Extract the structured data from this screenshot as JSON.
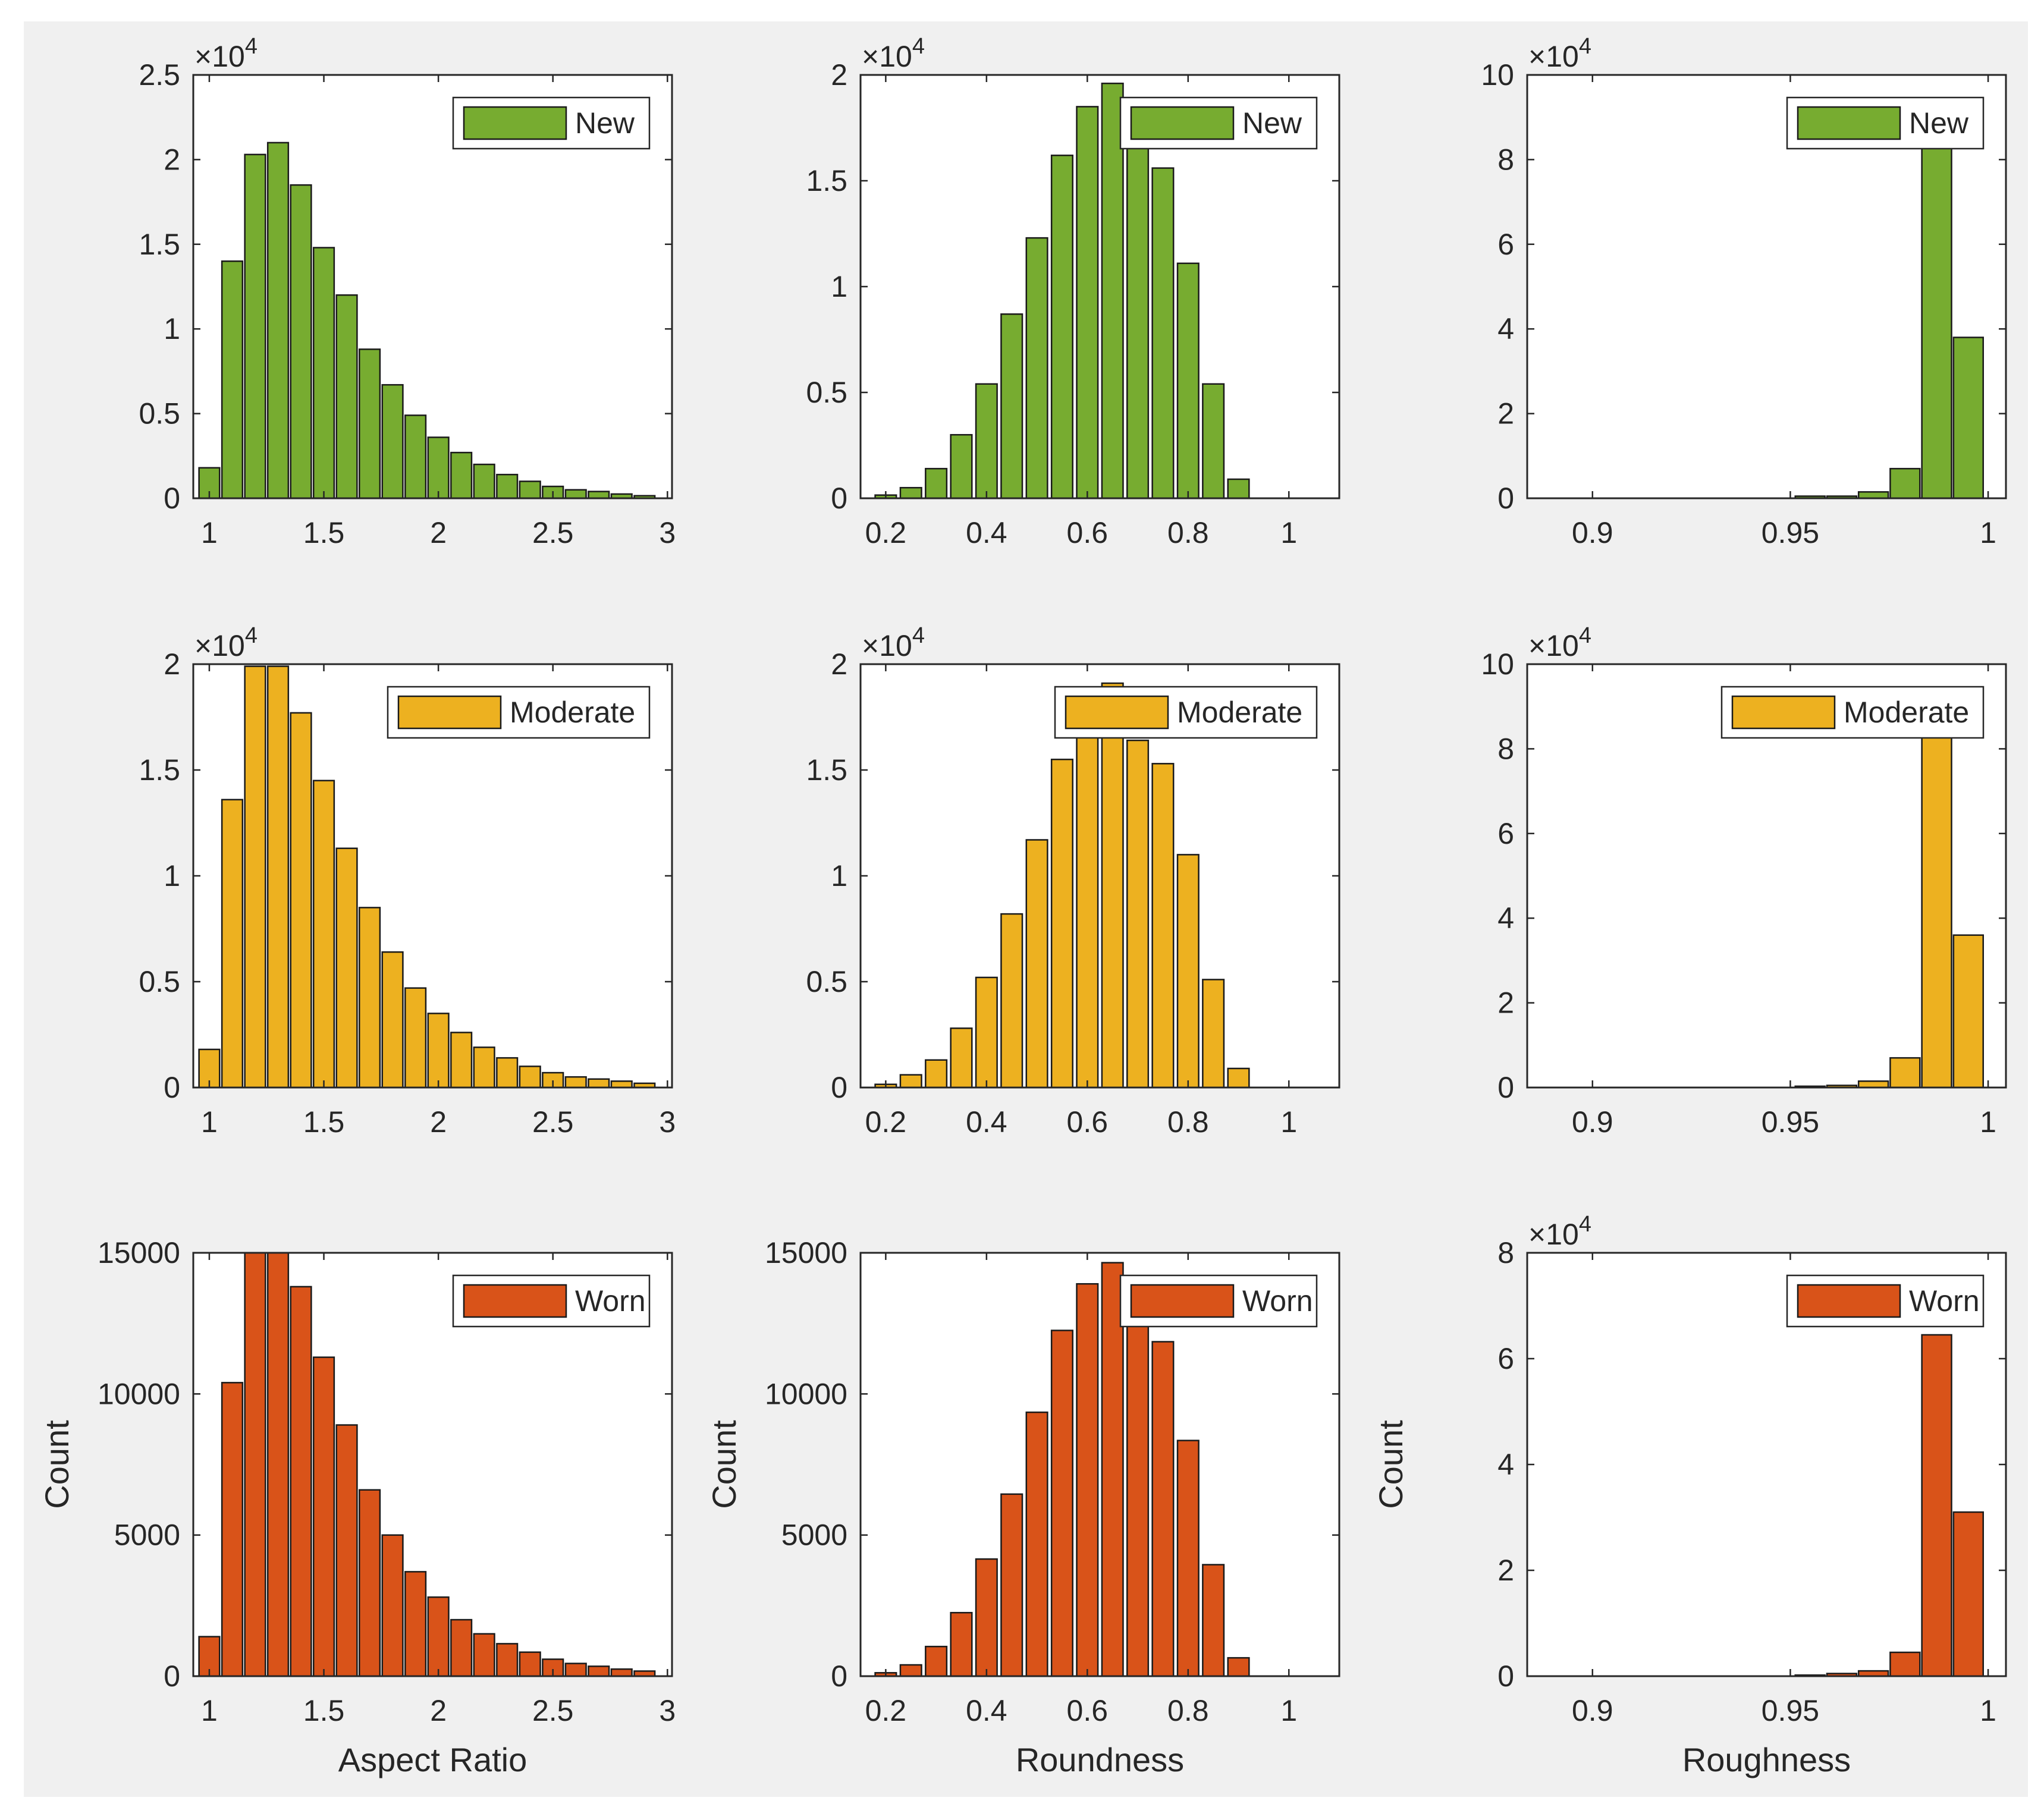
{
  "colors": {
    "new": "#77ac30",
    "moderate": "#edb120",
    "worn": "#d95319",
    "background": "#f0f0f0",
    "axes_bg": "#ffffff",
    "axis": "#262626",
    "legend_edge": "#262626"
  },
  "chart_data": [
    {
      "id": "aspect-new",
      "type": "bar",
      "row": 0,
      "col": 0,
      "legend": "New",
      "color_key": "new",
      "title": "",
      "xlabel": "",
      "ylabel": "",
      "exponent": "×10^4",
      "xlim": [
        0.93,
        3.02
      ],
      "ylim": [
        0,
        2.5
      ],
      "xticks": [
        1,
        1.5,
        2,
        2.5,
        3
      ],
      "xtick_labels": [
        "1",
        "1.5",
        "2",
        "2.5",
        "3"
      ],
      "yticks": [
        0,
        0.5,
        1,
        1.5,
        2,
        2.5
      ],
      "ytick_labels": [
        "0",
        "0.5",
        "1",
        "1.5",
        "2",
        "2.5"
      ],
      "bar_width": 0.09,
      "x": [
        1.0,
        1.1,
        1.2,
        1.3,
        1.4,
        1.5,
        1.6,
        1.7,
        1.8,
        1.9,
        2.0,
        2.1,
        2.2,
        2.3,
        2.4,
        2.5,
        2.6,
        2.7,
        2.8,
        2.9
      ],
      "values": [
        0.18,
        1.4,
        2.03,
        2.1,
        1.85,
        1.48,
        1.2,
        0.88,
        0.67,
        0.49,
        0.36,
        0.27,
        0.2,
        0.14,
        0.1,
        0.07,
        0.05,
        0.04,
        0.025,
        0.015
      ]
    },
    {
      "id": "roundness-new",
      "type": "bar",
      "row": 0,
      "col": 1,
      "legend": "New",
      "color_key": "new",
      "title": "",
      "xlabel": "",
      "ylabel": "",
      "exponent": "×10^4",
      "xlim": [
        0.15,
        1.1
      ],
      "ylim": [
        0,
        2
      ],
      "xticks": [
        0.2,
        0.4,
        0.6,
        0.8,
        1
      ],
      "xtick_labels": [
        "0.2",
        "0.4",
        "0.6",
        "0.8",
        "1"
      ],
      "yticks": [
        0,
        0.5,
        1,
        1.5,
        2
      ],
      "ytick_labels": [
        "0",
        "0.5",
        "1",
        "1.5",
        "2"
      ],
      "bar_width": 0.042,
      "x": [
        0.2,
        0.25,
        0.3,
        0.35,
        0.4,
        0.45,
        0.5,
        0.55,
        0.6,
        0.65,
        0.7,
        0.75,
        0.8,
        0.85,
        0.9
      ],
      "values": [
        0.015,
        0.05,
        0.14,
        0.3,
        0.54,
        0.87,
        1.23,
        1.62,
        1.85,
        1.96,
        1.66,
        1.56,
        1.11,
        0.54,
        0.09
      ]
    },
    {
      "id": "roughness-new",
      "type": "bar",
      "row": 0,
      "col": 2,
      "legend": "New",
      "color_key": "new",
      "title": "",
      "xlabel": "",
      "ylabel": "",
      "exponent": "×10^4",
      "xlim": [
        0.8835,
        1.0045
      ],
      "ylim": [
        0,
        10
      ],
      "xticks": [
        0.9,
        0.95,
        1
      ],
      "xtick_labels": [
        "0.9",
        "0.95",
        "1"
      ],
      "yticks": [
        0,
        2,
        4,
        6,
        8,
        10
      ],
      "ytick_labels": [
        "0",
        "2",
        "4",
        "6",
        "8",
        "10"
      ],
      "bar_width": 0.0075,
      "x": [
        0.955,
        0.963,
        0.971,
        0.979,
        0.987,
        0.995
      ],
      "values": [
        0.05,
        0.05,
        0.15,
        0.7,
        8.5,
        3.8
      ]
    },
    {
      "id": "aspect-moderate",
      "type": "bar",
      "row": 1,
      "col": 0,
      "legend": "Moderate",
      "color_key": "moderate",
      "title": "",
      "xlabel": "",
      "ylabel": "",
      "exponent": "×10^4",
      "xlim": [
        0.93,
        3.02
      ],
      "ylim": [
        0,
        2
      ],
      "xticks": [
        1,
        1.5,
        2,
        2.5,
        3
      ],
      "xtick_labels": [
        "1",
        "1.5",
        "2",
        "2.5",
        "3"
      ],
      "yticks": [
        0,
        0.5,
        1,
        1.5,
        2
      ],
      "ytick_labels": [
        "0",
        "0.5",
        "1",
        "1.5",
        "2"
      ],
      "bar_width": 0.09,
      "x": [
        1.0,
        1.1,
        1.2,
        1.3,
        1.4,
        1.5,
        1.6,
        1.7,
        1.8,
        1.9,
        2.0,
        2.1,
        2.2,
        2.3,
        2.4,
        2.5,
        2.6,
        2.7,
        2.8,
        2.9
      ],
      "values": [
        0.18,
        1.36,
        1.99,
        1.99,
        1.77,
        1.45,
        1.13,
        0.85,
        0.64,
        0.47,
        0.35,
        0.26,
        0.19,
        0.14,
        0.1,
        0.07,
        0.05,
        0.04,
        0.03,
        0.02
      ]
    },
    {
      "id": "roundness-moderate",
      "type": "bar",
      "row": 1,
      "col": 1,
      "legend": "Moderate",
      "color_key": "moderate",
      "title": "",
      "xlabel": "",
      "ylabel": "",
      "exponent": "×10^4",
      "xlim": [
        0.15,
        1.1
      ],
      "ylim": [
        0,
        2
      ],
      "xticks": [
        0.2,
        0.4,
        0.6,
        0.8,
        1
      ],
      "xtick_labels": [
        "0.2",
        "0.4",
        "0.6",
        "0.8",
        "1"
      ],
      "yticks": [
        0,
        0.5,
        1,
        1.5,
        2
      ],
      "ytick_labels": [
        "0",
        "0.5",
        "1",
        "1.5",
        "2"
      ],
      "bar_width": 0.042,
      "x": [
        0.2,
        0.25,
        0.3,
        0.35,
        0.4,
        0.45,
        0.5,
        0.55,
        0.6,
        0.65,
        0.7,
        0.75,
        0.8,
        0.85,
        0.9
      ],
      "values": [
        0.015,
        0.06,
        0.13,
        0.28,
        0.52,
        0.82,
        1.17,
        1.55,
        1.8,
        1.91,
        1.64,
        1.53,
        1.1,
        0.51,
        0.09
      ]
    },
    {
      "id": "roughness-moderate",
      "type": "bar",
      "row": 1,
      "col": 2,
      "legend": "Moderate",
      "color_key": "moderate",
      "title": "",
      "xlabel": "",
      "ylabel": "",
      "exponent": "×10^4",
      "xlim": [
        0.8835,
        1.0045
      ],
      "ylim": [
        0,
        10
      ],
      "xticks": [
        0.9,
        0.95,
        1
      ],
      "xtick_labels": [
        "0.9",
        "0.95",
        "1"
      ],
      "yticks": [
        0,
        2,
        4,
        6,
        8,
        10
      ],
      "ytick_labels": [
        "0",
        "2",
        "4",
        "6",
        "8",
        "10"
      ],
      "bar_width": 0.0075,
      "x": [
        0.955,
        0.963,
        0.971,
        0.979,
        0.987,
        0.995
      ],
      "values": [
        0.03,
        0.05,
        0.15,
        0.7,
        8.5,
        3.6
      ]
    },
    {
      "id": "aspect-worn",
      "type": "bar",
      "row": 2,
      "col": 0,
      "legend": "Worn",
      "color_key": "worn",
      "title": "",
      "xlabel": "Aspect Ratio",
      "ylabel": "Count",
      "exponent": "",
      "xlim": [
        0.93,
        3.02
      ],
      "ylim": [
        0,
        15000
      ],
      "xticks": [
        1,
        1.5,
        2,
        2.5,
        3
      ],
      "xtick_labels": [
        "1",
        "1.5",
        "2",
        "2.5",
        "3"
      ],
      "yticks": [
        0,
        5000,
        10000,
        15000
      ],
      "ytick_labels": [
        "0",
        "5000",
        "10000",
        "15000"
      ],
      "bar_width": 0.09,
      "x": [
        1.0,
        1.1,
        1.2,
        1.3,
        1.4,
        1.5,
        1.6,
        1.7,
        1.8,
        1.9,
        2.0,
        2.1,
        2.2,
        2.3,
        2.4,
        2.5,
        2.6,
        2.7,
        2.8,
        2.9
      ],
      "values": [
        1400,
        10400,
        15000,
        15000,
        13800,
        11300,
        8900,
        6600,
        5000,
        3700,
        2800,
        2000,
        1500,
        1150,
        850,
        600,
        450,
        350,
        250,
        180
      ]
    },
    {
      "id": "roundness-worn",
      "type": "bar",
      "row": 2,
      "col": 1,
      "legend": "Worn",
      "color_key": "worn",
      "title": "",
      "xlabel": "Roundness",
      "ylabel": "Count",
      "exponent": "",
      "xlim": [
        0.15,
        1.1
      ],
      "ylim": [
        0,
        15000
      ],
      "xticks": [
        0.2,
        0.4,
        0.6,
        0.8,
        1
      ],
      "xtick_labels": [
        "0.2",
        "0.4",
        "0.6",
        "0.8",
        "1"
      ],
      "yticks": [
        0,
        5000,
        10000,
        15000
      ],
      "ytick_labels": [
        "0",
        "5000",
        "10000",
        "15000"
      ],
      "bar_width": 0.042,
      "x": [
        0.2,
        0.25,
        0.3,
        0.35,
        0.4,
        0.45,
        0.5,
        0.55,
        0.6,
        0.65,
        0.7,
        0.75,
        0.8,
        0.85,
        0.9
      ],
      "values": [
        120,
        400,
        1050,
        2250,
        4150,
        6450,
        9350,
        12250,
        13900,
        14650,
        12500,
        11850,
        8350,
        3950,
        650
      ]
    },
    {
      "id": "roughness-worn",
      "type": "bar",
      "row": 2,
      "col": 2,
      "legend": "Worn",
      "color_key": "worn",
      "title": "",
      "xlabel": "Roughness",
      "ylabel": "Count",
      "exponent": "×10^4",
      "xlim": [
        0.8835,
        1.0045
      ],
      "ylim": [
        0,
        8
      ],
      "xticks": [
        0.9,
        0.95,
        1
      ],
      "xtick_labels": [
        "0.9",
        "0.95",
        "1"
      ],
      "yticks": [
        0,
        2,
        4,
        6,
        8
      ],
      "ytick_labels": [
        "0",
        "2",
        "4",
        "6",
        "8"
      ],
      "bar_width": 0.0075,
      "x": [
        0.955,
        0.963,
        0.971,
        0.979,
        0.987,
        0.995
      ],
      "values": [
        0.02,
        0.05,
        0.1,
        0.45,
        6.45,
        3.1
      ]
    }
  ]
}
